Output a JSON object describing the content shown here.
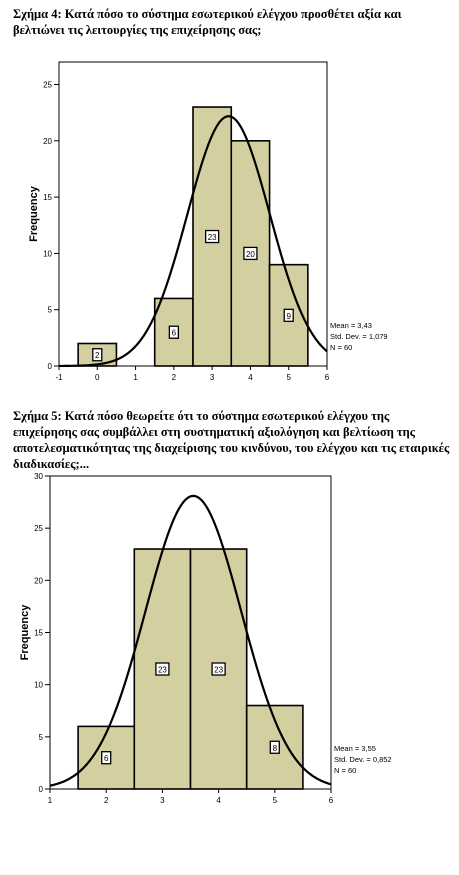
{
  "charts": [
    {
      "caption_label": "Σχήμα 4:",
      "caption_text": "Κατά πόσο το σύστημα εσωτερικού ελέγχου προσθέτει αξία και βελτιώνει τις λειτουργίες της επιχείρησης σας;"
    },
    {
      "caption_label": "Σχήμα 5:",
      "caption_text": "Κατά πόσο θεωρείτε ότι το σύστημα εσωτερικού ελέγχου της επιχείρησης σας συμβάλλει στη συστηματική αξιολόγηση και βελτίωση της αποτελεσματικότητας της διαχείρισης του κινδύνου, του ελέγχου και τις εταιρικές διαδικασίες;..."
    }
  ],
  "chart_data": [
    {
      "type": "bar",
      "ylabel": "Frequency",
      "xlim": [
        -1,
        6
      ],
      "ylim": [
        0,
        27
      ],
      "xticks": [
        "-1",
        "0",
        "1",
        "2",
        "3",
        "4",
        "5",
        "6"
      ],
      "yticks": [
        "0",
        "5",
        "10",
        "15",
        "20",
        "25"
      ],
      "categories": [
        "0",
        "2",
        "3",
        "4",
        "5"
      ],
      "bin_centers": [
        0,
        2,
        3,
        4,
        5
      ],
      "values": [
        2,
        6,
        23,
        20,
        9
      ],
      "bar_labels": [
        "2",
        "6",
        "23",
        "20",
        "9"
      ],
      "normal_curve": {
        "mean": 3.43,
        "sd": 1.079,
        "n": 60,
        "bin_width": 1
      },
      "stats": [
        "Mean = 3,43",
        "Std. Dev. = 1,079",
        "N = 60"
      ],
      "bar_color": "#d4cfa0",
      "grid": false
    },
    {
      "type": "bar",
      "ylabel": "Frequency",
      "xlim": [
        1,
        6
      ],
      "ylim": [
        0,
        30
      ],
      "xticks": [
        "1",
        "2",
        "3",
        "4",
        "5",
        "6"
      ],
      "yticks": [
        "0",
        "5",
        "10",
        "15",
        "20",
        "25",
        "30"
      ],
      "categories": [
        "2",
        "3",
        "4",
        "5"
      ],
      "bin_centers": [
        2,
        3,
        4,
        5
      ],
      "values": [
        6,
        23,
        23,
        8
      ],
      "bar_labels": [
        "6",
        "23",
        "23",
        "8"
      ],
      "normal_curve": {
        "mean": 3.55,
        "sd": 0.852,
        "n": 60,
        "bin_width": 1
      },
      "stats": [
        "Mean = 3,55",
        "Std. Dev. = 0,852",
        "N = 60"
      ],
      "bar_color": "#d4cfa0",
      "grid": false
    }
  ]
}
